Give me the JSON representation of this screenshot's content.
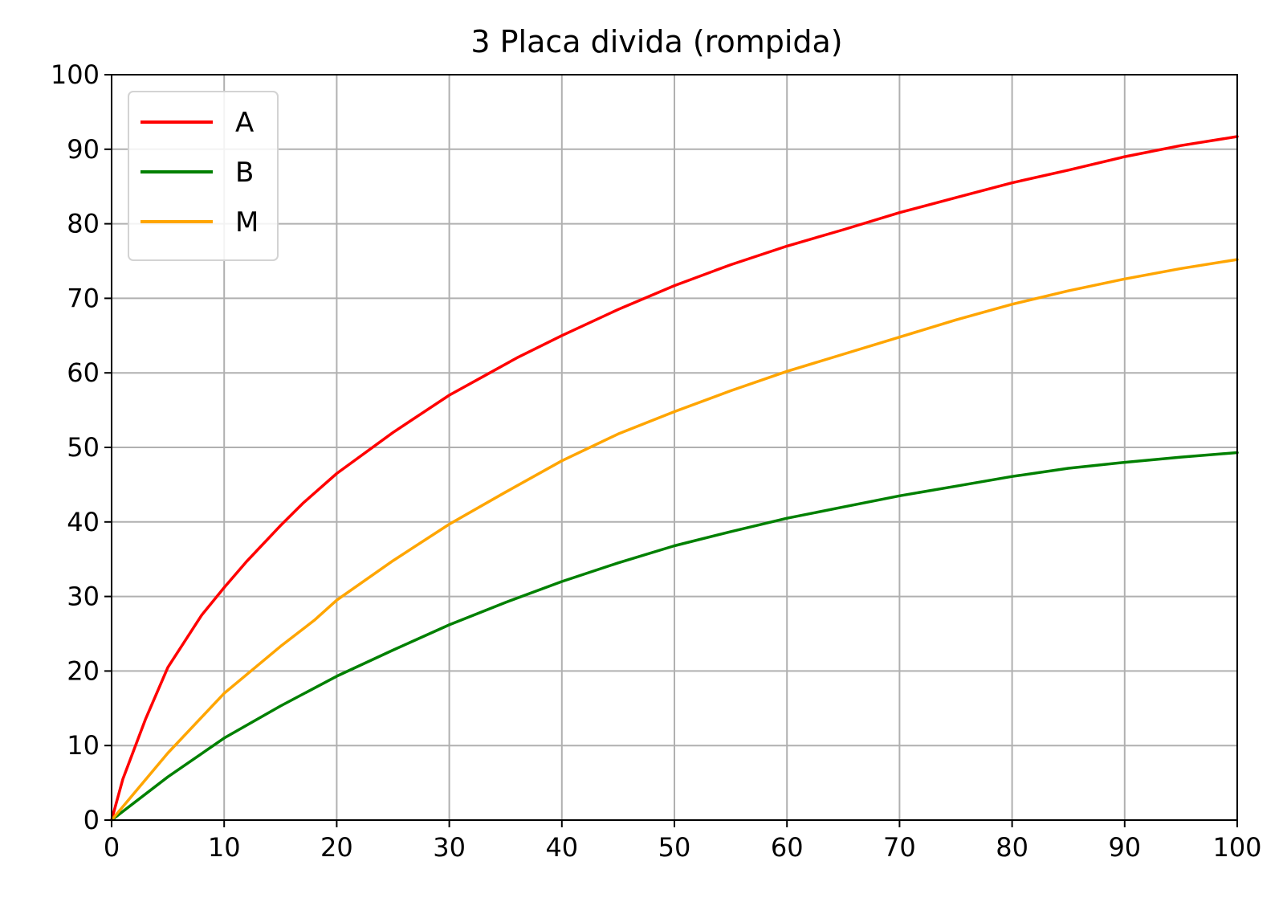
{
  "chart_data": {
    "type": "line",
    "title": "3 Placa divida (rompida)",
    "xlabel": "",
    "ylabel": "",
    "xlim": [
      0,
      100
    ],
    "ylim": [
      0,
      100
    ],
    "xticks": [
      0,
      10,
      20,
      30,
      40,
      50,
      60,
      70,
      80,
      90,
      100
    ],
    "yticks": [
      0,
      10,
      20,
      30,
      40,
      50,
      60,
      70,
      80,
      90,
      100
    ],
    "grid": true,
    "legend_position": "upper-left",
    "series": [
      {
        "name": "A",
        "color": "#ff0000",
        "x": [
          0,
          1,
          3,
          5,
          8,
          10,
          12,
          15,
          17,
          20,
          25,
          30,
          33,
          36,
          40,
          45,
          50,
          55,
          60,
          65,
          70,
          75,
          80,
          85,
          90,
          95,
          100
        ],
        "y": [
          0,
          5.5,
          13.5,
          20.5,
          27.5,
          31.2,
          34.7,
          39.5,
          42.5,
          46.5,
          52,
          57,
          59.5,
          62,
          65,
          68.5,
          71.7,
          74.5,
          77,
          79.2,
          81.5,
          83.5,
          85.5,
          87.2,
          89,
          90.5,
          91.7
        ]
      },
      {
        "name": "B",
        "color": "#008000",
        "x": [
          0,
          5,
          10,
          15,
          20,
          25,
          30,
          35,
          40,
          45,
          50,
          55,
          60,
          65,
          70,
          75,
          80,
          85,
          90,
          95,
          100
        ],
        "y": [
          0,
          5.8,
          11,
          15.3,
          19.3,
          22.8,
          26.2,
          29.2,
          32,
          34.5,
          36.8,
          38.7,
          40.5,
          42,
          43.5,
          44.8,
          46.1,
          47.2,
          48,
          48.7,
          49.3
        ]
      },
      {
        "name": "M",
        "color": "#ffa500",
        "x": [
          0,
          5,
          10,
          15,
          18,
          20,
          25,
          30,
          35,
          40,
          45,
          50,
          55,
          60,
          65,
          70,
          75,
          80,
          85,
          90,
          95,
          100
        ],
        "y": [
          0,
          9,
          17,
          23.3,
          26.8,
          29.5,
          34.8,
          39.7,
          44,
          48.2,
          51.8,
          54.8,
          57.6,
          60.2,
          62.5,
          64.8,
          67.1,
          69.2,
          71,
          72.6,
          74,
          75.2
        ]
      }
    ]
  }
}
